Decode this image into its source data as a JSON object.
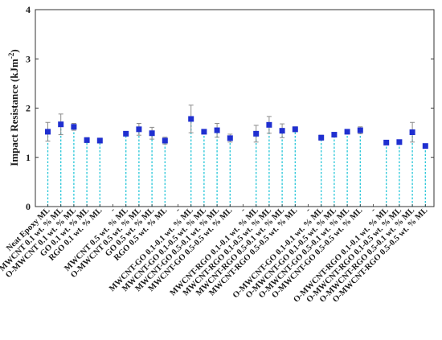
{
  "chart_data": {
    "type": "bar",
    "ylabel": "Impact Resistance (kJm",
    "ylabel_sup": "-2",
    "ylabel_close": ")",
    "ylim": [
      0,
      4
    ],
    "yticks": [
      "0",
      "1",
      "2",
      "3",
      "4"
    ],
    "grid": false,
    "legend": "none",
    "style": {
      "marker_color": "#1f2fd0",
      "line_color": "#25c6d8",
      "error_color": "#8c8c8c",
      "axis_color": "#333333"
    },
    "categories": [
      "Neat Epoxy ML",
      "MWCNT 0.1 wt. % ML",
      "O-MWCNT 0.1 wt. % ML",
      "GO 0.1 wt. % ML",
      "RGO 0.1 wt. % ML",
      "-",
      "MWCNT 0.5 wt. % ML",
      "O-MWCNT 0.5 wt. % ML",
      "GO 0.5 wt. % ML",
      "RGO 0.5 wt. % ML",
      "-",
      "MWCNT-GO 0.1-0.1 wt. % ML",
      "MWCNT-GO 0.1-0.5 wt. % ML",
      "MWCNT-GO 0.5-0.1 wt. % ML",
      "MWCNT-GO 0.5-0.5 wt. % ML",
      "-",
      "MWCNT-RGO 0.1-0.1 wt. % ML",
      "MWCNT-RGO 0.1-0.5 wt. % ML",
      "MWCNT-RGO 0.5-0.1 wt. % ML",
      "MWCNT-RGO 0.5-0.5 wt. % ML",
      "-",
      "O-MWCNT-GO 0.1-0.1 wt. % ML",
      "O-MWCNT-GO 0.1-0.5 wt. % ML",
      "O-MWCNT-GO 0.5-0.1 wt. % ML",
      "O-MWCNT-GO 0.5-0.5 wt. % ML",
      "-",
      "O-MWCNT-RGO 0.1-0.1 wt. % ML",
      "O-MWCNT-RGO 0.1-0.5 wt. % ML",
      "O-MWCNT-RGO 0.5-0.1 wt. % ML",
      "O-MWCNT-RGO 0.5-0.5 wt. % ML"
    ],
    "values": [
      1.52,
      1.67,
      1.62,
      1.35,
      1.34,
      null,
      1.48,
      1.57,
      1.49,
      1.34,
      null,
      1.78,
      1.52,
      1.55,
      1.39,
      null,
      1.48,
      1.66,
      1.54,
      1.57,
      null,
      1.4,
      1.46,
      1.52,
      1.55,
      null,
      1.3,
      1.31,
      1.51,
      1.23
    ],
    "errors": [
      0.19,
      0.21,
      0.07,
      0.05,
      0.05,
      null,
      0.04,
      0.12,
      0.12,
      0.07,
      null,
      0.28,
      0.04,
      0.14,
      0.08,
      null,
      0.17,
      0.17,
      0.14,
      0.05,
      null,
      0.05,
      0.04,
      0.03,
      0.07,
      null,
      0.02,
      0.04,
      0.2,
      0.03
    ]
  }
}
